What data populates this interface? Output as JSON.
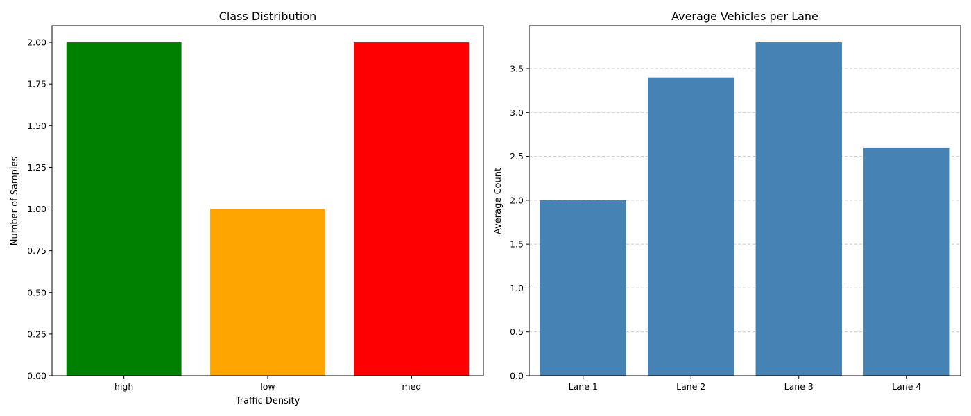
{
  "chart_data": [
    {
      "type": "bar",
      "title": "Class Distribution",
      "xlabel": "Traffic Density",
      "ylabel": "Number of Samples",
      "categories": [
        "high",
        "low",
        "med"
      ],
      "values": [
        2,
        1,
        2
      ],
      "colors": [
        "#008000",
        "#ffa500",
        "#ff0000"
      ],
      "ylim": [
        0,
        2.1
      ],
      "yticks": [
        0,
        0.25,
        0.5,
        0.75,
        1.0,
        1.25,
        1.5,
        1.75,
        2.0
      ],
      "ytick_labels": [
        "0.00",
        "0.25",
        "0.50",
        "0.75",
        "1.00",
        "1.25",
        "1.50",
        "1.75",
        "2.00"
      ],
      "grid": false
    },
    {
      "type": "bar",
      "title": "Average Vehicles per Lane",
      "xlabel": "",
      "ylabel": "Average Count",
      "categories": [
        "Lane 1",
        "Lane 2",
        "Lane 3",
        "Lane 4"
      ],
      "values": [
        2.0,
        3.4,
        3.8,
        2.6
      ],
      "colors": [
        "#4682b4",
        "#4682b4",
        "#4682b4",
        "#4682b4"
      ],
      "ylim": [
        0,
        3.99
      ],
      "yticks": [
        0,
        0.5,
        1.0,
        1.5,
        2.0,
        2.5,
        3.0,
        3.5
      ],
      "ytick_labels": [
        "0.0",
        "0.5",
        "1.0",
        "1.5",
        "2.0",
        "2.5",
        "3.0",
        "3.5"
      ],
      "grid": true,
      "grid_color": "#c8c8c8"
    }
  ]
}
